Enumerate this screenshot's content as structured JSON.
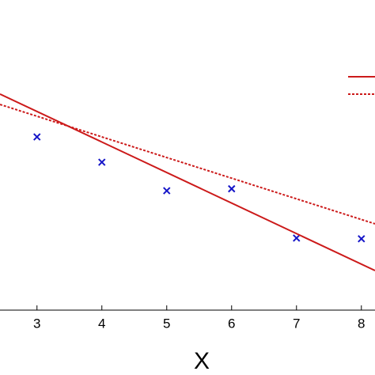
{
  "chart_data": {
    "type": "scatter-lines",
    "xlabel": "X",
    "xlim": [
      2.43,
      8.21
    ],
    "xticks": [
      3,
      4,
      5,
      6,
      7,
      8
    ],
    "ylim": [
      0,
      4.78
    ],
    "series": [
      {
        "kind": "scatter",
        "color": "#1515c8",
        "x": [
          3,
          4,
          5,
          6,
          7,
          8
        ],
        "values": [
          2.67,
          2.28,
          1.84,
          1.87,
          1.11,
          1.1
        ]
      },
      {
        "kind": "line",
        "dash": false,
        "color": "#cc1a1a",
        "x": [
          2.43,
          8.21
        ],
        "values": [
          3.33,
          0.61
        ]
      },
      {
        "kind": "line",
        "dash": true,
        "color": "#cc1a1a",
        "x": [
          2.43,
          8.21
        ],
        "values": [
          3.17,
          1.33
        ]
      }
    ]
  }
}
